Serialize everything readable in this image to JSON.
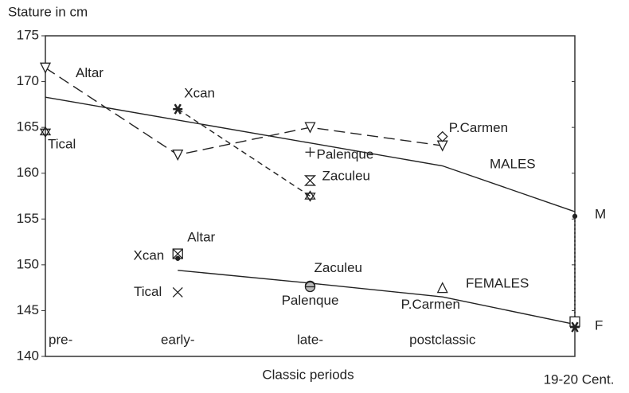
{
  "chart_data": {
    "type": "line",
    "title": "Stature in cm",
    "x_label": "Classic periods",
    "categories": [
      "pre-",
      "early-",
      "late-",
      "postclassic",
      "19-20 Cent."
    ],
    "ylim": [
      140,
      175
    ],
    "yticks": [
      140,
      145,
      150,
      155,
      160,
      165,
      170,
      175
    ],
    "color": "#222222",
    "series": [
      {
        "name": "MALES",
        "style": "solid",
        "values": [
          168.3,
          165.8,
          163.3,
          160.8,
          155.8
        ]
      },
      {
        "name": "FEMALES",
        "style": "solid",
        "values": [
          null,
          149.4,
          148,
          146.5,
          143.5
        ]
      },
      {
        "name": "Altar",
        "style": "long-dash",
        "marker": "down-triangle",
        "values": [
          171.5,
          162,
          165,
          163,
          null
        ]
      },
      {
        "style": "short-dash",
        "values": [
          null,
          167,
          157.5,
          null,
          null
        ]
      }
    ],
    "points": [
      {
        "x": 0,
        "value": 164.5,
        "marker": "star",
        "label": "Tical"
      },
      {
        "x": 1,
        "value": 167,
        "marker": "asterisk",
        "label": "Xcan"
      },
      {
        "x": 2,
        "value": 162.3,
        "marker": "plus",
        "label": "Palenque"
      },
      {
        "x": 2,
        "value": 159.2,
        "marker": "hourglass",
        "label": "Zaculeu"
      },
      {
        "x": 2,
        "value": 157.5,
        "marker": "star"
      },
      {
        "x": 3,
        "value": 164,
        "marker": "diamond",
        "label": "P.Carmen"
      },
      {
        "x": 4,
        "value": 155.3,
        "marker": "dot",
        "label": "M"
      },
      {
        "x": 1,
        "value": 151.2,
        "marker": "box-x",
        "label": "Altar"
      },
      {
        "x": 1,
        "value": 150.7,
        "marker": "dot",
        "label": "Xcan"
      },
      {
        "x": 1,
        "value": 147,
        "marker": "x",
        "label": "Tical"
      },
      {
        "x": 2,
        "value": 147.7,
        "marker": "circle",
        "label": "Zaculeu"
      },
      {
        "x": 2,
        "value": 147.6,
        "marker": "circle",
        "label": "Palenque"
      },
      {
        "x": 3,
        "value": 147.5,
        "marker": "triangle",
        "label": "P.Carmen"
      },
      {
        "x": 4,
        "value": 143.8,
        "marker": "square",
        "label": "F"
      },
      {
        "x": 4,
        "value": 143.2,
        "marker": "asterisk"
      }
    ]
  }
}
